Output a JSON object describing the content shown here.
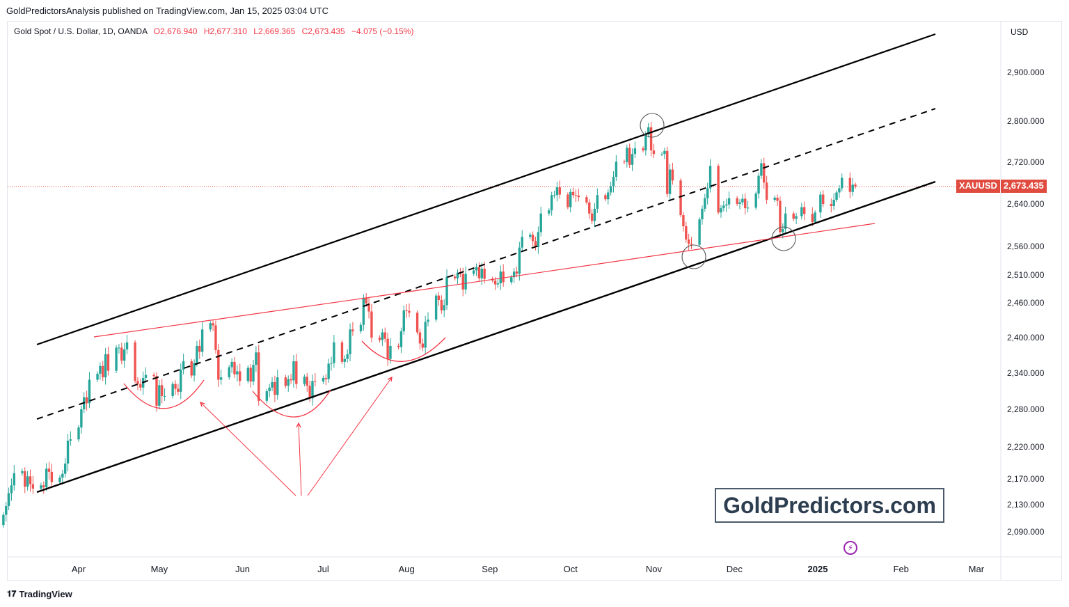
{
  "publisher_line": "GoldPredictorsAnalysis published on TradingView.com, Jan 15, 2025 03:04 UTC",
  "legend": {
    "symbol": "Gold Spot / U.S. Dollar, 1D, OANDA",
    "open": "O2,676.940",
    "high": "H2,677.310",
    "low": "L2,669.365",
    "close": "C2,673.435",
    "change": "−4.075 (−0.15%)"
  },
  "currency": "USD",
  "price_tag": {
    "symbol": "XAUUSD",
    "price": "2,673.435"
  },
  "watermark": "GoldPredictors.com",
  "footer": "TradingView",
  "colors": {
    "up": "#26a69a",
    "down": "#ef5350",
    "channel": "#000000",
    "trend": "#f23645",
    "price_line": "#e04b3f"
  },
  "chart_data": {
    "type": "candlestick",
    "ylim": [
      2060,
      3000
    ],
    "y_ticks": [
      {
        "v": 2900,
        "label": "2,900.000"
      },
      {
        "v": 2800,
        "label": "2,800.000"
      },
      {
        "v": 2720,
        "label": "2,720.000"
      },
      {
        "v": 2640,
        "label": "2,640.000"
      },
      {
        "v": 2560,
        "label": "2,560.000"
      },
      {
        "v": 2510,
        "label": "2,510.000"
      },
      {
        "v": 2460,
        "label": "2,460.000"
      },
      {
        "v": 2400,
        "label": "2,400.000"
      },
      {
        "v": 2340,
        "label": "2,340.000"
      },
      {
        "v": 2280,
        "label": "2,280.000"
      },
      {
        "v": 2220,
        "label": "2,220.000"
      },
      {
        "v": 2170,
        "label": "2,170.000"
      },
      {
        "v": 2130,
        "label": "2,130.000"
      },
      {
        "v": 2090,
        "label": "2,090.000"
      }
    ],
    "x_ticks": [
      {
        "d": "2024-04-01",
        "label": "Apr"
      },
      {
        "d": "2024-05-01",
        "label": "May"
      },
      {
        "d": "2024-06-01",
        "label": "Jun"
      },
      {
        "d": "2024-07-01",
        "label": "Jul"
      },
      {
        "d": "2024-08-01",
        "label": "Aug"
      },
      {
        "d": "2024-09-01",
        "label": "Sep"
      },
      {
        "d": "2024-10-01",
        "label": "Oct"
      },
      {
        "d": "2024-11-01",
        "label": "Nov"
      },
      {
        "d": "2024-12-01",
        "label": "Dec"
      },
      {
        "d": "2025-01-01",
        "label": "2025",
        "bold": true
      },
      {
        "d": "2025-02-01",
        "label": "Feb"
      },
      {
        "d": "2025-03-01",
        "label": "Mar"
      }
    ],
    "last_price": 2673.435,
    "closes": [
      [
        "2024-03-04",
        2115
      ],
      [
        "2024-03-05",
        2128
      ],
      [
        "2024-03-06",
        2148
      ],
      [
        "2024-03-07",
        2160
      ],
      [
        "2024-03-08",
        2179
      ],
      [
        "2024-03-11",
        2182
      ],
      [
        "2024-03-12",
        2158
      ],
      [
        "2024-03-13",
        2174
      ],
      [
        "2024-03-14",
        2162
      ],
      [
        "2024-03-15",
        2155
      ],
      [
        "2024-03-18",
        2160
      ],
      [
        "2024-03-19",
        2157
      ],
      [
        "2024-03-20",
        2186
      ],
      [
        "2024-03-21",
        2181
      ],
      [
        "2024-03-22",
        2165
      ],
      [
        "2024-03-25",
        2172
      ],
      [
        "2024-03-26",
        2178
      ],
      [
        "2024-03-27",
        2194
      ],
      [
        "2024-03-28",
        2230
      ],
      [
        "2024-03-29",
        2232
      ],
      [
        "2024-04-01",
        2251
      ],
      [
        "2024-04-02",
        2280
      ],
      [
        "2024-04-03",
        2300
      ],
      [
        "2024-04-04",
        2290
      ],
      [
        "2024-04-05",
        2329
      ],
      [
        "2024-04-08",
        2339
      ],
      [
        "2024-04-09",
        2352
      ],
      [
        "2024-04-10",
        2333
      ],
      [
        "2024-04-11",
        2372
      ],
      [
        "2024-04-12",
        2344
      ],
      [
        "2024-04-15",
        2383
      ],
      [
        "2024-04-16",
        2383
      ],
      [
        "2024-04-17",
        2361
      ],
      [
        "2024-04-18",
        2380
      ],
      [
        "2024-04-19",
        2392
      ],
      [
        "2024-04-22",
        2327
      ],
      [
        "2024-04-23",
        2322
      ],
      [
        "2024-04-24",
        2316
      ],
      [
        "2024-04-25",
        2332
      ],
      [
        "2024-04-26",
        2337
      ],
      [
        "2024-04-29",
        2335
      ],
      [
        "2024-04-30",
        2286
      ],
      [
        "2024-05-01",
        2320
      ],
      [
        "2024-05-02",
        2302
      ],
      [
        "2024-05-03",
        2302
      ],
      [
        "2024-05-06",
        2322
      ],
      [
        "2024-05-07",
        2314
      ],
      [
        "2024-05-08",
        2309
      ],
      [
        "2024-05-09",
        2346
      ],
      [
        "2024-05-10",
        2360
      ],
      [
        "2024-05-13",
        2336
      ],
      [
        "2024-05-14",
        2357
      ],
      [
        "2024-05-15",
        2386
      ],
      [
        "2024-05-16",
        2376
      ],
      [
        "2024-05-17",
        2414
      ],
      [
        "2024-05-20",
        2425
      ],
      [
        "2024-05-21",
        2421
      ],
      [
        "2024-05-22",
        2379
      ],
      [
        "2024-05-23",
        2329
      ],
      [
        "2024-05-24",
        2333
      ],
      [
        "2024-05-27",
        2350
      ],
      [
        "2024-05-28",
        2359
      ],
      [
        "2024-05-29",
        2338
      ],
      [
        "2024-05-30",
        2343
      ],
      [
        "2024-05-31",
        2327
      ],
      [
        "2024-06-03",
        2349
      ],
      [
        "2024-06-04",
        2326
      ],
      [
        "2024-06-05",
        2354
      ],
      [
        "2024-06-06",
        2375
      ],
      [
        "2024-06-07",
        2294
      ],
      [
        "2024-06-10",
        2310
      ],
      [
        "2024-06-11",
        2316
      ],
      [
        "2024-06-12",
        2325
      ],
      [
        "2024-06-13",
        2304
      ],
      [
        "2024-06-14",
        2333
      ],
      [
        "2024-06-17",
        2319
      ],
      [
        "2024-06-18",
        2330
      ],
      [
        "2024-06-19",
        2328
      ],
      [
        "2024-06-20",
        2360
      ],
      [
        "2024-06-21",
        2322
      ],
      [
        "2024-06-24",
        2334
      ],
      [
        "2024-06-25",
        2319
      ],
      [
        "2024-06-26",
        2298
      ],
      [
        "2024-06-27",
        2327
      ],
      [
        "2024-06-28",
        2326
      ],
      [
        "2024-07-01",
        2332
      ],
      [
        "2024-07-02",
        2330
      ],
      [
        "2024-07-03",
        2356
      ],
      [
        "2024-07-04",
        2357
      ],
      [
        "2024-07-05",
        2392
      ],
      [
        "2024-07-08",
        2359
      ],
      [
        "2024-07-09",
        2364
      ],
      [
        "2024-07-10",
        2372
      ],
      [
        "2024-07-11",
        2414
      ],
      [
        "2024-07-12",
        2411
      ],
      [
        "2024-07-15",
        2422
      ],
      [
        "2024-07-16",
        2469
      ],
      [
        "2024-07-17",
        2459
      ],
      [
        "2024-07-18",
        2445
      ],
      [
        "2024-07-19",
        2400
      ],
      [
        "2024-07-22",
        2396
      ],
      [
        "2024-07-23",
        2409
      ],
      [
        "2024-07-24",
        2398
      ],
      [
        "2024-07-25",
        2364
      ],
      [
        "2024-07-26",
        2386
      ],
      [
        "2024-07-29",
        2384
      ],
      [
        "2024-07-30",
        2411
      ],
      [
        "2024-07-31",
        2447
      ],
      [
        "2024-08-01",
        2446
      ],
      [
        "2024-08-02",
        2443
      ],
      [
        "2024-08-05",
        2409
      ],
      [
        "2024-08-06",
        2390
      ],
      [
        "2024-08-07",
        2383
      ],
      [
        "2024-08-08",
        2427
      ],
      [
        "2024-08-09",
        2431
      ],
      [
        "2024-08-12",
        2473
      ],
      [
        "2024-08-13",
        2465
      ],
      [
        "2024-08-14",
        2447
      ],
      [
        "2024-08-15",
        2456
      ],
      [
        "2024-08-16",
        2507
      ],
      [
        "2024-08-19",
        2504
      ],
      [
        "2024-08-20",
        2514
      ],
      [
        "2024-08-21",
        2512
      ],
      [
        "2024-08-22",
        2484
      ],
      [
        "2024-08-23",
        2512
      ],
      [
        "2024-08-26",
        2518
      ],
      [
        "2024-08-27",
        2524
      ],
      [
        "2024-08-28",
        2504
      ],
      [
        "2024-08-29",
        2521
      ],
      [
        "2024-08-30",
        2503
      ],
      [
        "2024-09-02",
        2500
      ],
      [
        "2024-09-03",
        2493
      ],
      [
        "2024-09-04",
        2495
      ],
      [
        "2024-09-05",
        2516
      ],
      [
        "2024-09-06",
        2497
      ],
      [
        "2024-09-09",
        2506
      ],
      [
        "2024-09-10",
        2516
      ],
      [
        "2024-09-11",
        2512
      ],
      [
        "2024-09-12",
        2558
      ],
      [
        "2024-09-13",
        2578
      ],
      [
        "2024-09-16",
        2582
      ],
      [
        "2024-09-17",
        2570
      ],
      [
        "2024-09-18",
        2559
      ],
      [
        "2024-09-19",
        2587
      ],
      [
        "2024-09-20",
        2622
      ],
      [
        "2024-09-23",
        2628
      ],
      [
        "2024-09-24",
        2657
      ],
      [
        "2024-09-25",
        2657
      ],
      [
        "2024-09-26",
        2672
      ],
      [
        "2024-09-27",
        2658
      ],
      [
        "2024-09-30",
        2634
      ],
      [
        "2024-10-01",
        2663
      ],
      [
        "2024-10-02",
        2657
      ],
      [
        "2024-10-03",
        2656
      ],
      [
        "2024-10-04",
        2653
      ],
      [
        "2024-10-07",
        2643
      ],
      [
        "2024-10-08",
        2622
      ],
      [
        "2024-10-09",
        2608
      ],
      [
        "2024-10-10",
        2631
      ],
      [
        "2024-10-11",
        2657
      ],
      [
        "2024-10-14",
        2649
      ],
      [
        "2024-10-15",
        2662
      ],
      [
        "2024-10-16",
        2674
      ],
      [
        "2024-10-17",
        2692
      ],
      [
        "2024-10-18",
        2721
      ],
      [
        "2024-10-21",
        2720
      ],
      [
        "2024-10-22",
        2748
      ],
      [
        "2024-10-23",
        2715
      ],
      [
        "2024-10-24",
        2736
      ],
      [
        "2024-10-25",
        2747
      ],
      [
        "2024-10-28",
        2743
      ],
      [
        "2024-10-29",
        2774
      ],
      [
        "2024-10-30",
        2788
      ],
      [
        "2024-10-31",
        2743
      ],
      [
        "2024-11-01",
        2736
      ],
      [
        "2024-11-04",
        2736
      ],
      [
        "2024-11-05",
        2742
      ],
      [
        "2024-11-06",
        2659
      ],
      [
        "2024-11-07",
        2706
      ],
      [
        "2024-11-08",
        2685
      ],
      [
        "2024-11-11",
        2619
      ],
      [
        "2024-11-12",
        2598
      ],
      [
        "2024-11-13",
        2573
      ],
      [
        "2024-11-14",
        2565
      ],
      [
        "2024-11-15",
        2563
      ],
      [
        "2024-11-18",
        2611
      ],
      [
        "2024-11-19",
        2631
      ],
      [
        "2024-11-20",
        2651
      ],
      [
        "2024-11-21",
        2670
      ],
      [
        "2024-11-22",
        2713
      ],
      [
        "2024-11-25",
        2624
      ],
      [
        "2024-11-26",
        2632
      ],
      [
        "2024-11-27",
        2637
      ],
      [
        "2024-11-28",
        2639
      ],
      [
        "2024-11-29",
        2651
      ],
      [
        "2024-12-02",
        2640
      ],
      [
        "2024-12-03",
        2643
      ],
      [
        "2024-12-04",
        2650
      ],
      [
        "2024-12-05",
        2632
      ],
      [
        "2024-12-06",
        2633
      ],
      [
        "2024-12-09",
        2660
      ],
      [
        "2024-12-10",
        2694
      ],
      [
        "2024-12-11",
        2718
      ],
      [
        "2024-12-12",
        2681
      ],
      [
        "2024-12-13",
        2648
      ],
      [
        "2024-12-16",
        2652
      ],
      [
        "2024-12-17",
        2646
      ],
      [
        "2024-12-18",
        2587
      ],
      [
        "2024-12-19",
        2593
      ],
      [
        "2024-12-20",
        2622
      ],
      [
        "2024-12-23",
        2612
      ],
      [
        "2024-12-24",
        2617
      ],
      [
        "2024-12-26",
        2634
      ],
      [
        "2024-12-27",
        2621
      ],
      [
        "2024-12-30",
        2606
      ],
      [
        "2024-12-31",
        2624
      ],
      [
        "2025-01-02",
        2658
      ],
      [
        "2025-01-03",
        2640
      ],
      [
        "2025-01-06",
        2636
      ],
      [
        "2025-01-07",
        2648
      ],
      [
        "2025-01-08",
        2662
      ],
      [
        "2025-01-09",
        2670
      ],
      [
        "2025-01-10",
        2690
      ],
      [
        "2025-01-13",
        2663
      ],
      [
        "2025-01-14",
        2677
      ],
      [
        "2025-01-15",
        2673.435
      ]
    ]
  }
}
